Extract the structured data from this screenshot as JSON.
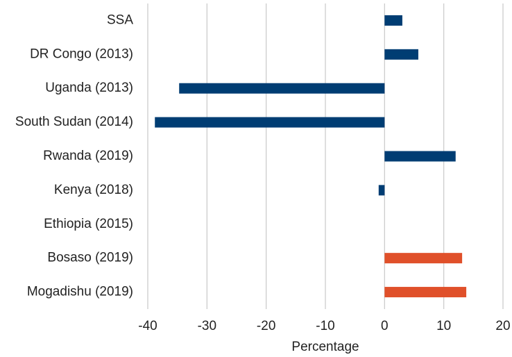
{
  "chart_data": {
    "type": "hbar",
    "categories": [
      "SSA",
      "DR Congo (2013)",
      "Uganda (2013)",
      "South Sudan (2014)",
      "Rwanda (2019)",
      "Kenya (2018)",
      "Ethiopia (2015)",
      "Bosaso (2019)",
      "Mogadishu (2019)"
    ],
    "values": [
      3.0,
      5.7,
      -34.7,
      -38.8,
      12.0,
      -1.0,
      null,
      13.1,
      13.8
    ],
    "colors": [
      "#003d73",
      "#003d73",
      "#003d73",
      "#003d73",
      "#003d73",
      "#003d73",
      "#003d73",
      "#e0502a",
      "#e0502a"
    ],
    "xlabel": "Percentage",
    "xlim": [
      -40,
      20
    ],
    "xticks": [
      -40,
      -30,
      -20,
      -10,
      0,
      10,
      20
    ],
    "grid": true
  }
}
